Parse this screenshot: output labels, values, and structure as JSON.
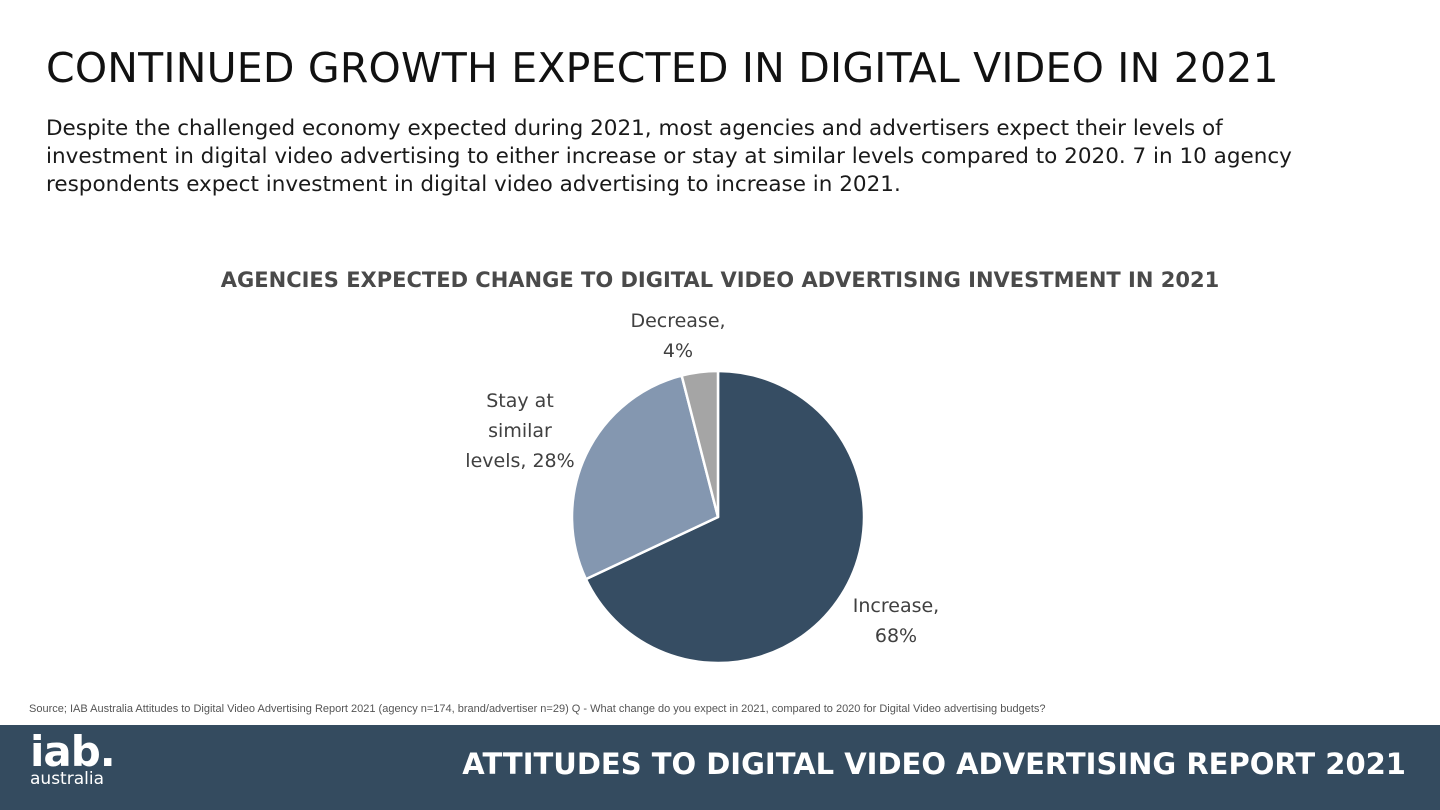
{
  "page": {
    "title": "CONTINUED GROWTH EXPECTED IN DIGITAL VIDEO IN 2021",
    "intro": "Despite the challenged economy expected during 2021, most agencies and advertisers expect their levels of investment in digital video advertising to either increase or stay at similar levels compared to 2020.  7 in 10 agency respondents expect investment in digital video advertising to increase in 2021.",
    "source": "Source; IAB Australia Attitudes to Digital Video Advertising Report 2021 (agency n=174, brand/advertiser n=29) Q - What change do you expect in 2021, compared to 2020 for Digital Video advertising budgets?"
  },
  "footer": {
    "logo_main": "iab.",
    "logo_sub": "australia",
    "title": "ATTITUDES TO DIGITAL VIDEO ADVERTISING REPORT 2021"
  },
  "chart_data": {
    "type": "pie",
    "title": "AGENCIES EXPECTED CHANGE TO DIGITAL VIDEO ADVERTISING INVESTMENT IN 2021",
    "slices": [
      {
        "label": "Increase,",
        "value": 68,
        "value_label": "68%",
        "color": "#364d63"
      },
      {
        "label": "Stay at similar levels, 28%",
        "value": 28,
        "value_label": "",
        "color": "#8497b0"
      },
      {
        "label": "Decrease,",
        "value": 4,
        "value_label": "4%",
        "color": "#a5a5a5"
      }
    ],
    "start": "12 o'clock",
    "direction": "clockwise",
    "legend": "none"
  }
}
